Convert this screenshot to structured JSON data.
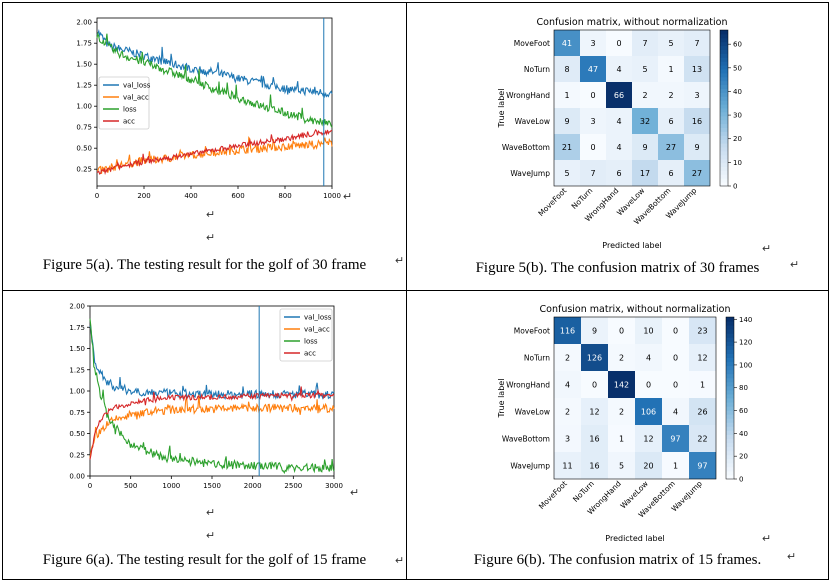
{
  "captions": {
    "fig5a": "Figure 5(a). The testing result for the golf of 30 frame",
    "fig5b": "Figure 5(b).  The confusion matrix of 30 frames",
    "fig6a": "Figure 6(a).  The testing result for the golf of 15 frame",
    "fig6b": "Figure 6(b). The confusion matrix of 15 frames."
  },
  "marks": {
    "paragraph": "↵"
  },
  "chart_data": [
    {
      "id": "fig5a",
      "type": "line",
      "xlim": [
        0,
        1000
      ],
      "ylim": [
        0.05,
        2.05
      ],
      "xticks": [
        0,
        200,
        400,
        600,
        800,
        1000
      ],
      "yticks": [
        0.25,
        0.5,
        0.75,
        1.0,
        1.25,
        1.5,
        1.75,
        2.0
      ],
      "ytick_labels": [
        "0.25",
        "0.50",
        "0.75",
        "1.00",
        "1.25",
        "1.50",
        "1.75",
        "2.00"
      ],
      "legend_position": "center-left",
      "vline_x": 965,
      "series": [
        {
          "name": "val_loss",
          "color": "#1f77b4",
          "x": [
            0,
            50,
            100,
            200,
            300,
            400,
            500,
            600,
            700,
            800,
            900,
            1000
          ],
          "y": [
            1.9,
            1.72,
            1.68,
            1.6,
            1.52,
            1.45,
            1.4,
            1.33,
            1.27,
            1.21,
            1.18,
            1.15
          ]
        },
        {
          "name": "val_acc",
          "color": "#ff7f0e",
          "x": [
            0,
            100,
            200,
            300,
            400,
            500,
            600,
            700,
            800,
            900,
            1000
          ],
          "y": [
            0.22,
            0.3,
            0.35,
            0.38,
            0.42,
            0.45,
            0.48,
            0.5,
            0.52,
            0.54,
            0.56
          ]
        },
        {
          "name": "loss",
          "color": "#2ca02c",
          "x": [
            0,
            50,
            100,
            200,
            300,
            400,
            500,
            600,
            700,
            800,
            900,
            1000
          ],
          "y": [
            1.85,
            1.7,
            1.62,
            1.52,
            1.42,
            1.32,
            1.2,
            1.1,
            1.0,
            0.92,
            0.84,
            0.78
          ]
        },
        {
          "name": "acc",
          "color": "#d62728",
          "x": [
            0,
            100,
            200,
            300,
            400,
            500,
            600,
            700,
            800,
            900,
            1000
          ],
          "y": [
            0.2,
            0.28,
            0.34,
            0.38,
            0.43,
            0.48,
            0.53,
            0.57,
            0.61,
            0.66,
            0.7
          ]
        }
      ]
    },
    {
      "id": "fig5b",
      "type": "heatmap",
      "title": "Confusion matrix, without normalization",
      "xlabel": "Predicted label",
      "ylabel": "True label",
      "labels": [
        "MoveFoot",
        "NoTurn",
        "WrongHand",
        "WaveLow",
        "WaveBottom",
        "WaveJump"
      ],
      "matrix": [
        [
          41,
          3,
          0,
          7,
          5,
          7
        ],
        [
          8,
          47,
          4,
          5,
          1,
          13
        ],
        [
          1,
          0,
          66,
          2,
          2,
          3
        ],
        [
          9,
          3,
          4,
          32,
          6,
          16
        ],
        [
          21,
          0,
          4,
          9,
          27,
          9
        ],
        [
          5,
          7,
          6,
          17,
          6,
          27
        ]
      ],
      "vmax": 66,
      "colorbar_ticks": [
        0,
        10,
        20,
        30,
        40,
        50,
        60
      ]
    },
    {
      "id": "fig6a",
      "type": "line",
      "xlim": [
        0,
        3000
      ],
      "ylim": [
        0,
        2.0
      ],
      "xticks": [
        0,
        500,
        1000,
        1500,
        2000,
        2500,
        3000
      ],
      "yticks": [
        0,
        0.25,
        0.5,
        0.75,
        1.0,
        1.25,
        1.5,
        1.75,
        2.0
      ],
      "ytick_labels": [
        "0.00",
        "0.25",
        "0.50",
        "0.75",
        "1.00",
        "1.25",
        "1.50",
        "1.75",
        "2.00"
      ],
      "legend_position": "top-right",
      "vline_x": 2080,
      "series": [
        {
          "name": "val_loss",
          "color": "#1f77b4",
          "x": [
            0,
            50,
            100,
            200,
            300,
            500,
            800,
            1000,
            1500,
            2000,
            2500,
            3000
          ],
          "y": [
            1.8,
            1.4,
            1.25,
            1.12,
            1.05,
            1.0,
            0.98,
            0.97,
            0.96,
            0.96,
            0.96,
            0.96
          ]
        },
        {
          "name": "val_acc",
          "color": "#ff7f0e",
          "x": [
            0,
            50,
            100,
            200,
            300,
            500,
            800,
            1000,
            1500,
            2000,
            2500,
            3000
          ],
          "y": [
            0.2,
            0.4,
            0.5,
            0.6,
            0.66,
            0.72,
            0.76,
            0.78,
            0.79,
            0.8,
            0.8,
            0.8
          ]
        },
        {
          "name": "loss",
          "color": "#2ca02c",
          "x": [
            0,
            25,
            50,
            100,
            200,
            300,
            500,
            800,
            1000,
            1500,
            2000,
            2500,
            3000
          ],
          "y": [
            1.9,
            1.6,
            1.35,
            1.05,
            0.75,
            0.55,
            0.38,
            0.25,
            0.2,
            0.14,
            0.12,
            0.1,
            0.09
          ]
        },
        {
          "name": "acc",
          "color": "#d62728",
          "x": [
            0,
            50,
            100,
            200,
            300,
            500,
            800,
            1000,
            1500,
            2000,
            2500,
            3000
          ],
          "y": [
            0.2,
            0.45,
            0.6,
            0.74,
            0.8,
            0.86,
            0.9,
            0.92,
            0.93,
            0.94,
            0.95,
            0.95
          ]
        }
      ]
    },
    {
      "id": "fig6b",
      "type": "heatmap",
      "title": "Confusion matrix, without normalization",
      "xlabel": "Predicted label",
      "ylabel": "True label",
      "labels": [
        "MoveFoot",
        "NoTurn",
        "WrongHand",
        "WaveLow",
        "WaveBottom",
        "WaveJump"
      ],
      "matrix": [
        [
          116,
          9,
          0,
          10,
          0,
          23
        ],
        [
          2,
          126,
          2,
          4,
          0,
          12
        ],
        [
          4,
          0,
          142,
          0,
          0,
          1
        ],
        [
          2,
          12,
          2,
          106,
          4,
          26
        ],
        [
          3,
          16,
          1,
          12,
          97,
          22
        ],
        [
          11,
          16,
          5,
          20,
          1,
          97
        ]
      ],
      "vmax": 142,
      "colorbar_ticks": [
        0,
        20,
        40,
        60,
        80,
        100,
        120,
        140
      ]
    }
  ]
}
